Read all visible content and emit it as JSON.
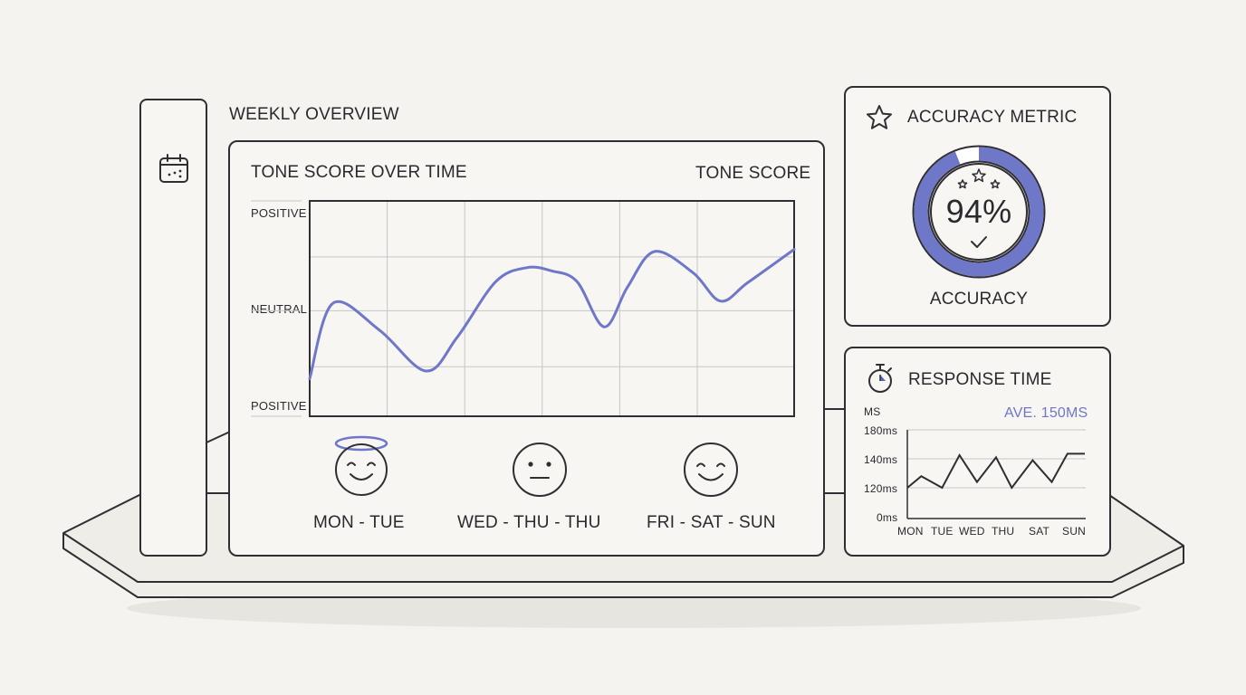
{
  "colors": {
    "accent": "#6f77c9",
    "ink": "#2f2f33",
    "background": "#f4f3ef"
  },
  "overview": {
    "heading": "WEEKLY OVERVIEW",
    "sidebar_icon": "calendar-icon"
  },
  "tone_panel": {
    "title": "TONE SCORE OVER TIME",
    "legend": "TONE SCORE",
    "chart_data": {
      "type": "line",
      "y_labels": [
        "POSITIVE",
        "NEUTRAL",
        "POSITIVE"
      ],
      "ylim": [
        -1,
        1
      ],
      "grid": true,
      "series": [
        {
          "x": [
            0,
            0.6,
            1.8,
            3,
            3.8,
            4.8,
            5.6,
            6.25,
            6.9,
            7.6,
            8.2,
            8.9,
            9.9,
            10.6,
            11.3,
            12.5
          ],
          "values": [
            -0.65,
            0.05,
            -0.2,
            -0.58,
            -0.27,
            0.25,
            0.38,
            0.35,
            0.25,
            -0.17,
            0.2,
            0.53,
            0.33,
            0.07,
            0.24,
            0.55
          ]
        }
      ]
    },
    "moods": [
      {
        "label": "MON - TUE",
        "icon": "angel-smile-icon"
      },
      {
        "label": "WED - THU - THU",
        "icon": "neutral-face-icon"
      },
      {
        "label": "FRI - SAT - SUN",
        "icon": "smile-face-icon"
      }
    ]
  },
  "accuracy_panel": {
    "title": "ACCURACY METRIC",
    "icon": "star-icon",
    "value": "94%",
    "value_fraction": 0.94,
    "caption": "ACCURACY"
  },
  "response_panel": {
    "title": "RESPONSE TIME",
    "icon": "stopwatch-icon",
    "unit": "MS",
    "average": "AVE. 150MS",
    "chart_data": {
      "type": "line",
      "categories": [
        "MON",
        "TUE",
        "WED",
        "THU",
        "SAT",
        "SUN"
      ],
      "y_ticks": [
        "180ms",
        "140ms",
        "120ms",
        "0ms"
      ],
      "grid": true,
      "series": [
        {
          "x": [
            0,
            0.4,
            1,
            1.5,
            2,
            2.55,
            3,
            3.6,
            4.15,
            4.6,
            5.1
          ],
          "values": [
            120,
            128,
            119,
            145,
            124,
            142,
            116,
            139,
            124,
            147,
            147
          ]
        }
      ]
    }
  }
}
